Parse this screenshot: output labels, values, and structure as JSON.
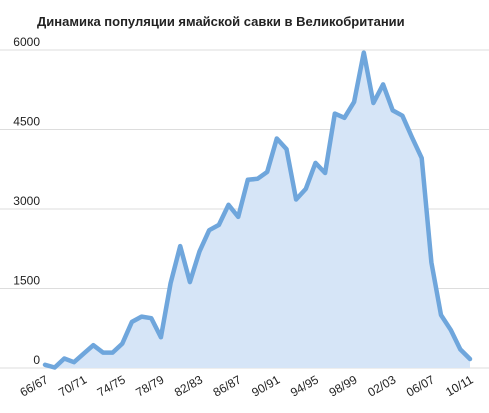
{
  "chart_data": {
    "type": "area",
    "title": "Динамика популяции ямайской савки в Великобритании",
    "xlabel": "",
    "ylabel": "",
    "ylim": [
      0,
      6000
    ],
    "yticks": [
      "0",
      "1500",
      "3000",
      "4500",
      "6000"
    ],
    "ytick_values": [
      0,
      1500,
      3000,
      4500,
      6000
    ],
    "grid": true,
    "legend": "none",
    "colors": {
      "line": "#6fa6dc",
      "fill": "#d6e5f7",
      "grid": "#dddddd"
    },
    "x_tick_labels": [
      {
        "label": "66/67",
        "index": 0
      },
      {
        "label": "70/71",
        "index": 4
      },
      {
        "label": "74/75",
        "index": 8
      },
      {
        "label": "78/79",
        "index": 12
      },
      {
        "label": "82/83",
        "index": 16
      },
      {
        "label": "86/87",
        "index": 20
      },
      {
        "label": "90/91",
        "index": 24
      },
      {
        "label": "94/95",
        "index": 28
      },
      {
        "label": "98/99",
        "index": 32
      },
      {
        "label": "02/03",
        "index": 36
      },
      {
        "label": "06/07",
        "index": 40
      },
      {
        "label": "10/11",
        "index": 44
      }
    ],
    "series": [
      {
        "values": [
          60,
          10,
          180,
          110,
          270,
          430,
          290,
          290,
          460,
          870,
          970,
          940,
          580,
          1600,
          2300,
          1620,
          2200,
          2600,
          2700,
          3080,
          2850,
          3550,
          3570,
          3700,
          4330,
          4130,
          3180,
          3380,
          3870,
          3680,
          4800,
          4720,
          5020,
          5950,
          5000,
          5350,
          4860,
          4760,
          4350,
          3960,
          1990,
          1000,
          720,
          350,
          170
        ]
      }
    ]
  }
}
